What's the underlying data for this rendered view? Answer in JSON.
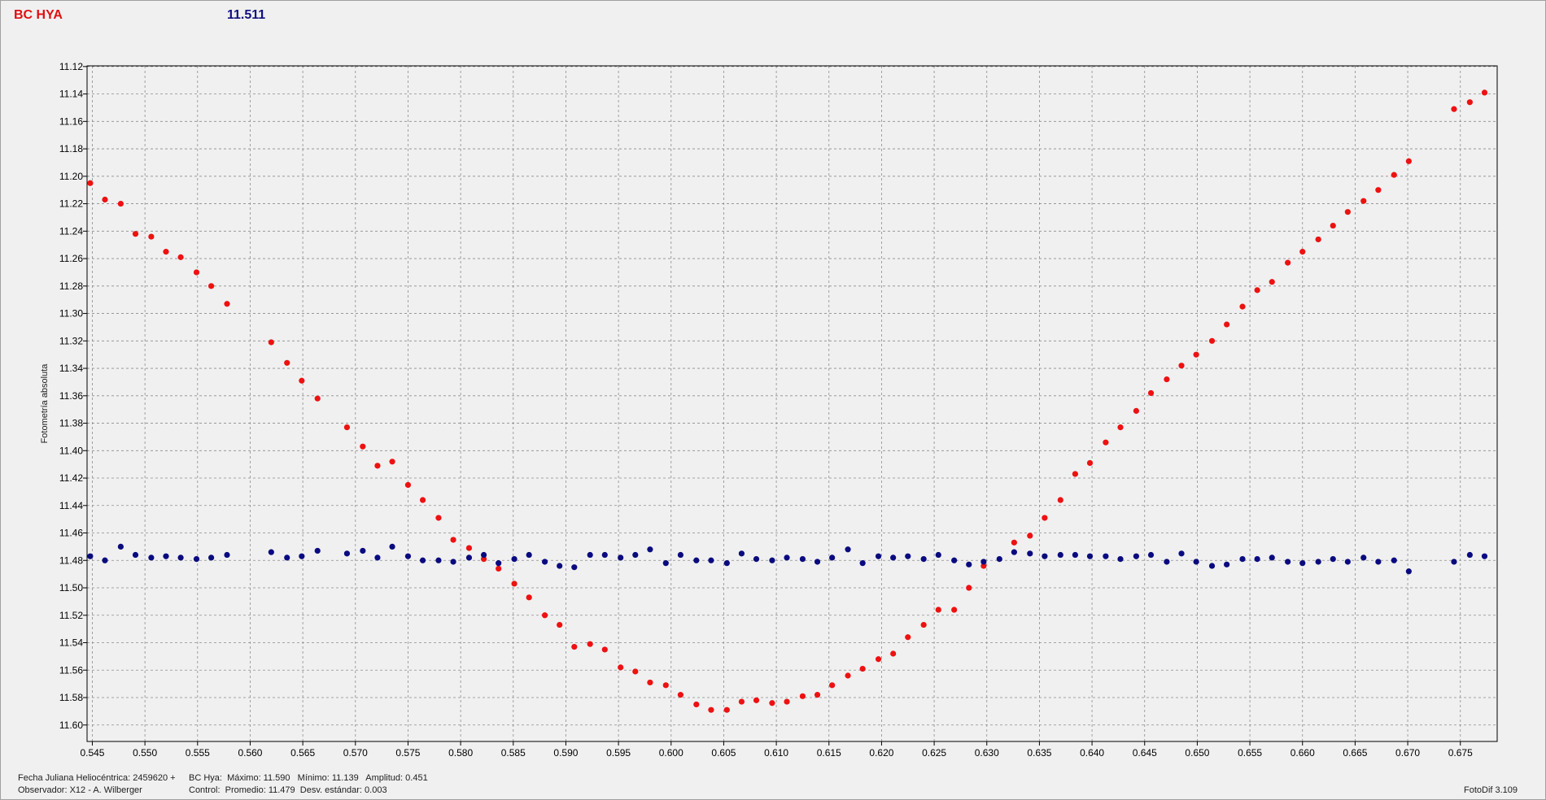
{
  "header": {
    "star_label": "BC HYA",
    "value": "11.511"
  },
  "footer": {
    "line1_left": "Fecha Juliana Heliocéntrica: 2459620 +",
    "line1_right": "BC Hya:  Máximo: 11.590   Mínimo: 11.139   Amplitud: 0.451",
    "line2_left": "Observador: X12 - A. Wilberger",
    "line2_right": "Control:  Promedio: 11.479  Desv. estándar: 0.003",
    "version": "FotoDif 3.109"
  },
  "chart_data": {
    "type": "scatter",
    "ylabel": "Fotometría absoluta",
    "xlabel": "",
    "xlim": [
      0.5445,
      0.6785
    ],
    "ylim": [
      11.612,
      11.1195
    ],
    "y_inverted": true,
    "grid": true,
    "x_ticks": [
      "0.545",
      "0.550",
      "0.555",
      "0.560",
      "0.565",
      "0.570",
      "0.575",
      "0.580",
      "0.585",
      "0.590",
      "0.595",
      "0.600",
      "0.605",
      "0.610",
      "0.615",
      "0.620",
      "0.625",
      "0.630",
      "0.635",
      "0.640",
      "0.645",
      "0.650",
      "0.655",
      "0.660",
      "0.665",
      "0.670",
      "0.675"
    ],
    "y_ticks": [
      "11.12",
      "11.14",
      "11.16",
      "11.18",
      "11.20",
      "11.22",
      "11.24",
      "11.26",
      "11.28",
      "11.30",
      "11.32",
      "11.34",
      "11.36",
      "11.38",
      "11.40",
      "11.42",
      "11.44",
      "11.46",
      "11.48",
      "11.50",
      "11.52",
      "11.54",
      "11.56",
      "11.58",
      "11.60"
    ],
    "series": [
      {
        "color": "#ee1111",
        "points": [
          [
            0.5448,
            11.205
          ],
          [
            0.5462,
            11.217
          ],
          [
            0.5477,
            11.22
          ],
          [
            0.5491,
            11.242
          ],
          [
            0.5506,
            11.244
          ],
          [
            0.552,
            11.255
          ],
          [
            0.5534,
            11.259
          ],
          [
            0.5549,
            11.27
          ],
          [
            0.5563,
            11.28
          ],
          [
            0.5578,
            11.293
          ],
          [
            0.562,
            11.321
          ],
          [
            0.5635,
            11.336
          ],
          [
            0.5649,
            11.349
          ],
          [
            0.5664,
            11.362
          ],
          [
            0.5692,
            11.383
          ],
          [
            0.5707,
            11.397
          ],
          [
            0.5721,
            11.411
          ],
          [
            0.5735,
            11.408
          ],
          [
            0.575,
            11.425
          ],
          [
            0.5764,
            11.436
          ],
          [
            0.5779,
            11.449
          ],
          [
            0.5793,
            11.465
          ],
          [
            0.5808,
            11.471
          ],
          [
            0.5822,
            11.479
          ],
          [
            0.5836,
            11.486
          ],
          [
            0.5851,
            11.497
          ],
          [
            0.5865,
            11.507
          ],
          [
            0.588,
            11.52
          ],
          [
            0.5894,
            11.527
          ],
          [
            0.5908,
            11.543
          ],
          [
            0.5923,
            11.541
          ],
          [
            0.5937,
            11.545
          ],
          [
            0.5952,
            11.558
          ],
          [
            0.5966,
            11.561
          ],
          [
            0.598,
            11.569
          ],
          [
            0.5995,
            11.571
          ],
          [
            0.6009,
            11.578
          ],
          [
            0.6024,
            11.585
          ],
          [
            0.6038,
            11.589
          ],
          [
            0.6053,
            11.589
          ],
          [
            0.6067,
            11.583
          ],
          [
            0.6081,
            11.582
          ],
          [
            0.6096,
            11.584
          ],
          [
            0.611,
            11.583
          ],
          [
            0.6125,
            11.579
          ],
          [
            0.6139,
            11.578
          ],
          [
            0.6153,
            11.571
          ],
          [
            0.6168,
            11.564
          ],
          [
            0.6182,
            11.559
          ],
          [
            0.6197,
            11.552
          ],
          [
            0.6211,
            11.548
          ],
          [
            0.6225,
            11.536
          ],
          [
            0.624,
            11.527
          ],
          [
            0.6254,
            11.516
          ],
          [
            0.6269,
            11.516
          ],
          [
            0.6283,
            11.5
          ],
          [
            0.6297,
            11.484
          ],
          [
            0.6326,
            11.467
          ],
          [
            0.6341,
            11.462
          ],
          [
            0.6355,
            11.449
          ],
          [
            0.637,
            11.436
          ],
          [
            0.6384,
            11.417
          ],
          [
            0.6398,
            11.409
          ],
          [
            0.6413,
            11.394
          ],
          [
            0.6427,
            11.383
          ],
          [
            0.6442,
            11.371
          ],
          [
            0.6456,
            11.358
          ],
          [
            0.6471,
            11.348
          ],
          [
            0.6485,
            11.338
          ],
          [
            0.6499,
            11.33
          ],
          [
            0.6514,
            11.32
          ],
          [
            0.6528,
            11.308
          ],
          [
            0.6543,
            11.295
          ],
          [
            0.6557,
            11.283
          ],
          [
            0.6571,
            11.277
          ],
          [
            0.6586,
            11.263
          ],
          [
            0.66,
            11.255
          ],
          [
            0.6615,
            11.246
          ],
          [
            0.6629,
            11.236
          ],
          [
            0.6643,
            11.226
          ],
          [
            0.6658,
            11.218
          ],
          [
            0.6672,
            11.21
          ],
          [
            0.6687,
            11.199
          ],
          [
            0.6701,
            11.189
          ],
          [
            0.6744,
            11.151
          ],
          [
            0.6759,
            11.146
          ],
          [
            0.6773,
            11.139
          ]
        ]
      },
      {
        "color": "#0a0a80",
        "points": [
          [
            0.5448,
            11.477
          ],
          [
            0.5462,
            11.48
          ],
          [
            0.5477,
            11.47
          ],
          [
            0.5491,
            11.476
          ],
          [
            0.5506,
            11.478
          ],
          [
            0.552,
            11.477
          ],
          [
            0.5534,
            11.478
          ],
          [
            0.5549,
            11.479
          ],
          [
            0.5563,
            11.478
          ],
          [
            0.5578,
            11.476
          ],
          [
            0.562,
            11.474
          ],
          [
            0.5635,
            11.478
          ],
          [
            0.5649,
            11.477
          ],
          [
            0.5664,
            11.473
          ],
          [
            0.5692,
            11.475
          ],
          [
            0.5707,
            11.473
          ],
          [
            0.5721,
            11.478
          ],
          [
            0.5735,
            11.47
          ],
          [
            0.575,
            11.477
          ],
          [
            0.5764,
            11.48
          ],
          [
            0.5779,
            11.48
          ],
          [
            0.5793,
            11.481
          ],
          [
            0.5808,
            11.478
          ],
          [
            0.5822,
            11.476
          ],
          [
            0.5836,
            11.482
          ],
          [
            0.5851,
            11.479
          ],
          [
            0.5865,
            11.476
          ],
          [
            0.588,
            11.481
          ],
          [
            0.5894,
            11.484
          ],
          [
            0.5908,
            11.485
          ],
          [
            0.5923,
            11.476
          ],
          [
            0.5937,
            11.476
          ],
          [
            0.5952,
            11.478
          ],
          [
            0.5966,
            11.476
          ],
          [
            0.598,
            11.472
          ],
          [
            0.5995,
            11.482
          ],
          [
            0.6009,
            11.476
          ],
          [
            0.6024,
            11.48
          ],
          [
            0.6038,
            11.48
          ],
          [
            0.6053,
            11.482
          ],
          [
            0.6067,
            11.475
          ],
          [
            0.6081,
            11.479
          ],
          [
            0.6096,
            11.48
          ],
          [
            0.611,
            11.478
          ],
          [
            0.6125,
            11.479
          ],
          [
            0.6139,
            11.481
          ],
          [
            0.6153,
            11.478
          ],
          [
            0.6168,
            11.472
          ],
          [
            0.6182,
            11.482
          ],
          [
            0.6197,
            11.477
          ],
          [
            0.6211,
            11.478
          ],
          [
            0.6225,
            11.477
          ],
          [
            0.624,
            11.479
          ],
          [
            0.6254,
            11.476
          ],
          [
            0.6269,
            11.48
          ],
          [
            0.6283,
            11.483
          ],
          [
            0.6297,
            11.481
          ],
          [
            0.6312,
            11.479
          ],
          [
            0.6326,
            11.474
          ],
          [
            0.6341,
            11.475
          ],
          [
            0.6355,
            11.477
          ],
          [
            0.637,
            11.476
          ],
          [
            0.6384,
            11.476
          ],
          [
            0.6398,
            11.477
          ],
          [
            0.6413,
            11.477
          ],
          [
            0.6427,
            11.479
          ],
          [
            0.6442,
            11.477
          ],
          [
            0.6456,
            11.476
          ],
          [
            0.6471,
            11.481
          ],
          [
            0.6485,
            11.475
          ],
          [
            0.6499,
            11.481
          ],
          [
            0.6514,
            11.484
          ],
          [
            0.6528,
            11.483
          ],
          [
            0.6543,
            11.479
          ],
          [
            0.6557,
            11.479
          ],
          [
            0.6571,
            11.478
          ],
          [
            0.6586,
            11.481
          ],
          [
            0.66,
            11.482
          ],
          [
            0.6615,
            11.481
          ],
          [
            0.6629,
            11.479
          ],
          [
            0.6643,
            11.481
          ],
          [
            0.6658,
            11.478
          ],
          [
            0.6672,
            11.481
          ],
          [
            0.6687,
            11.48
          ],
          [
            0.6701,
            11.488
          ],
          [
            0.6744,
            11.481
          ],
          [
            0.6759,
            11.476
          ],
          [
            0.6773,
            11.477
          ]
        ]
      }
    ]
  }
}
